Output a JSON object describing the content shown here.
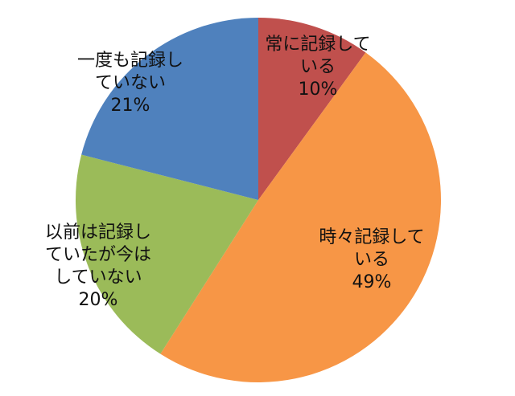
{
  "chart_data": {
    "type": "pie",
    "title": "",
    "start_angle_deg": 0,
    "direction": "clockwise",
    "slices": [
      {
        "label_lines": [
          "常に記録して",
          "いる"
        ],
        "value_label": "10%",
        "value": 10,
        "color": "#c0504d"
      },
      {
        "label_lines": [
          "時々記録して",
          "いる"
        ],
        "value_label": "49%",
        "value": 49,
        "color": "#f79646"
      },
      {
        "label_lines": [
          "以前は記録し",
          "ていたが今は",
          "していない"
        ],
        "value_label": "20%",
        "value": 20,
        "color": "#9bbb59"
      },
      {
        "label_lines": [
          "一度も記録し",
          "ていない"
        ],
        "value_label": "21%",
        "value": 21,
        "color": "#4f81bd"
      }
    ]
  }
}
